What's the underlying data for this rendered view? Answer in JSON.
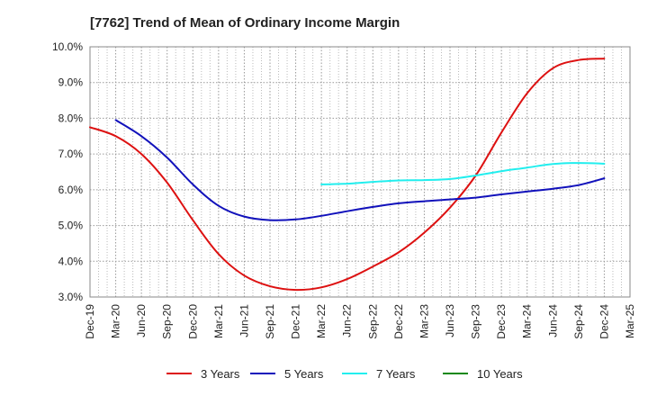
{
  "chart_data": {
    "type": "line",
    "title": "[7762]  Trend of Mean of Ordinary Income Margin",
    "xlabel": "",
    "ylabel": "",
    "ylim": [
      3.0,
      10.0
    ],
    "y_ticks": [
      "3.0%",
      "4.0%",
      "5.0%",
      "6.0%",
      "7.0%",
      "8.0%",
      "9.0%",
      "10.0%"
    ],
    "y_tick_values": [
      3,
      4,
      5,
      6,
      7,
      8,
      9,
      10
    ],
    "x_ticks": [
      "Dec-19",
      "Mar-20",
      "Jun-20",
      "Sep-20",
      "Dec-20",
      "Mar-21",
      "Jun-21",
      "Sep-21",
      "Dec-21",
      "Mar-22",
      "Jun-22",
      "Sep-22",
      "Dec-22",
      "Mar-23",
      "Jun-23",
      "Sep-23",
      "Dec-23",
      "Mar-24",
      "Jun-24",
      "Sep-24",
      "Dec-24",
      "Mar-25"
    ],
    "grid": true,
    "legend_position": "bottom",
    "series": [
      {
        "name": "3 Years",
        "color": "#dd1111",
        "points": [
          [
            "Dec-19",
            7.75
          ],
          [
            "Mar-20",
            7.5
          ],
          [
            "Jun-20",
            7.0
          ],
          [
            "Sep-20",
            6.2
          ],
          [
            "Dec-20",
            5.15
          ],
          [
            "Mar-21",
            4.2
          ],
          [
            "Jun-21",
            3.6
          ],
          [
            "Sep-21",
            3.3
          ],
          [
            "Dec-21",
            3.2
          ],
          [
            "Mar-22",
            3.27
          ],
          [
            "Jun-22",
            3.5
          ],
          [
            "Sep-22",
            3.85
          ],
          [
            "Dec-22",
            4.25
          ],
          [
            "Mar-23",
            4.8
          ],
          [
            "Jun-23",
            5.5
          ],
          [
            "Sep-23",
            6.4
          ],
          [
            "Dec-23",
            7.6
          ],
          [
            "Mar-24",
            8.7
          ],
          [
            "Jun-24",
            9.4
          ],
          [
            "Sep-24",
            9.63
          ],
          [
            "Dec-24",
            9.67
          ]
        ]
      },
      {
        "name": "5 Years",
        "color": "#1111bb",
        "points": [
          [
            "Mar-20",
            7.95
          ],
          [
            "Jun-20",
            7.5
          ],
          [
            "Sep-20",
            6.9
          ],
          [
            "Dec-20",
            6.15
          ],
          [
            "Mar-21",
            5.55
          ],
          [
            "Jun-21",
            5.25
          ],
          [
            "Sep-21",
            5.15
          ],
          [
            "Dec-21",
            5.17
          ],
          [
            "Mar-22",
            5.27
          ],
          [
            "Jun-22",
            5.4
          ],
          [
            "Sep-22",
            5.52
          ],
          [
            "Dec-22",
            5.62
          ],
          [
            "Mar-23",
            5.68
          ],
          [
            "Jun-23",
            5.73
          ],
          [
            "Sep-23",
            5.78
          ],
          [
            "Dec-23",
            5.87
          ],
          [
            "Mar-24",
            5.95
          ],
          [
            "Jun-24",
            6.03
          ],
          [
            "Sep-24",
            6.13
          ],
          [
            "Dec-24",
            6.32
          ]
        ]
      },
      {
        "name": "7 Years",
        "color": "#22eeee",
        "points": [
          [
            "Mar-22",
            6.15
          ],
          [
            "Jun-22",
            6.17
          ],
          [
            "Sep-22",
            6.22
          ],
          [
            "Dec-22",
            6.26
          ],
          [
            "Mar-23",
            6.27
          ],
          [
            "Jun-23",
            6.3
          ],
          [
            "Sep-23",
            6.4
          ],
          [
            "Dec-23",
            6.52
          ],
          [
            "Mar-24",
            6.62
          ],
          [
            "Jun-24",
            6.72
          ],
          [
            "Sep-24",
            6.75
          ],
          [
            "Dec-24",
            6.73
          ]
        ]
      },
      {
        "name": "10 Years",
        "color": "#118811",
        "points": []
      }
    ]
  }
}
